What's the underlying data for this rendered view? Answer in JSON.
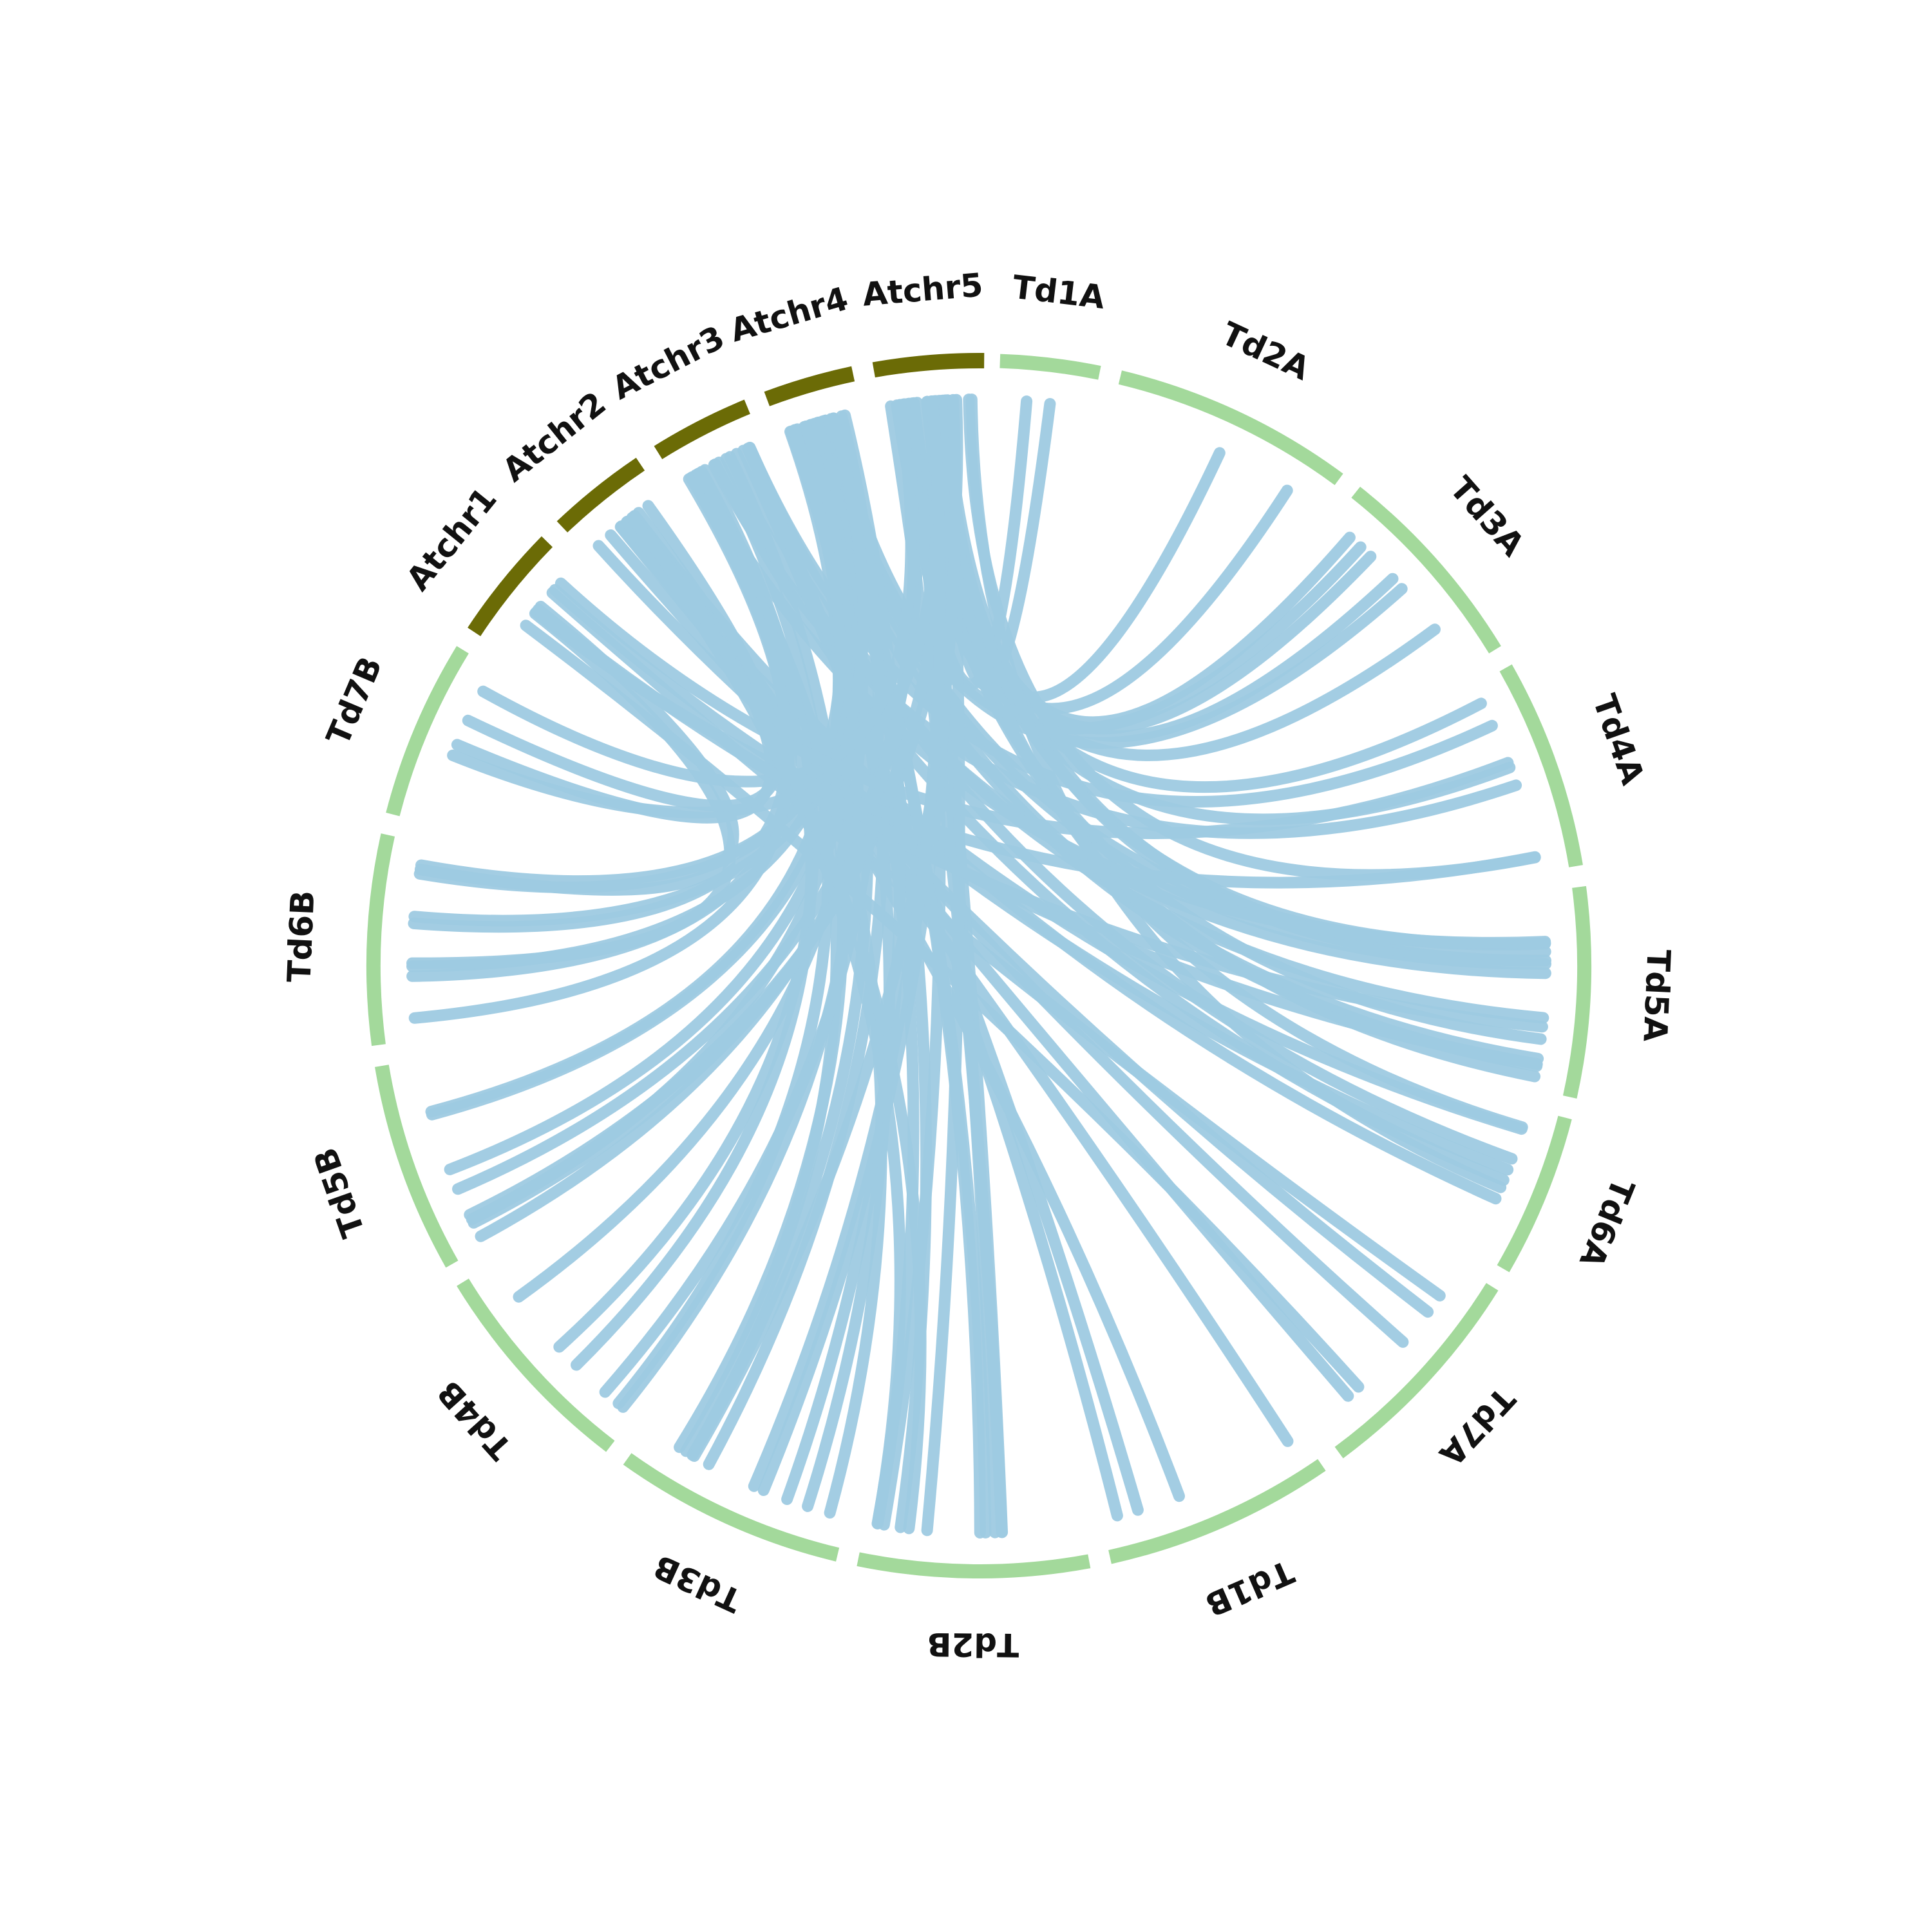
{
  "chart_data": {
    "type": "circos",
    "colors": {
      "arabidopsis": "#6b6b06",
      "durum": "#a3d99b",
      "link": "#9ecae1",
      "label": "#111111"
    },
    "chromosomes": [
      {
        "id": "Atchr1",
        "label": "Atchr1",
        "genome": "arabidopsis"
      },
      {
        "id": "Atchr2",
        "label": "Atchr2",
        "genome": "arabidopsis"
      },
      {
        "id": "Atchr3",
        "label": "Atchr3",
        "genome": "arabidopsis"
      },
      {
        "id": "Atchr4",
        "label": "Atchr4",
        "genome": "arabidopsis"
      },
      {
        "id": "Atchr5",
        "label": "Atchr5",
        "genome": "arabidopsis"
      },
      {
        "id": "Td1A",
        "label": "Td1A",
        "genome": "durum"
      },
      {
        "id": "Td2A",
        "label": "Td2A",
        "genome": "durum"
      },
      {
        "id": "Td3A",
        "label": "Td3A",
        "genome": "durum"
      },
      {
        "id": "Td4A",
        "label": "Td4A",
        "genome": "durum"
      },
      {
        "id": "Td5A",
        "label": "Td5A",
        "genome": "durum"
      },
      {
        "id": "Td6A",
        "label": "Td6A",
        "genome": "durum"
      },
      {
        "id": "Td7A",
        "label": "Td7A",
        "genome": "durum"
      },
      {
        "id": "Td1B",
        "label": "Td1B",
        "genome": "durum"
      },
      {
        "id": "Td2B",
        "label": "Td2B",
        "genome": "durum"
      },
      {
        "id": "Td3B",
        "label": "Td3B",
        "genome": "durum"
      },
      {
        "id": "Td4B",
        "label": "Td4B",
        "genome": "durum"
      },
      {
        "id": "Td5B",
        "label": "Td5B",
        "genome": "durum"
      },
      {
        "id": "Td6B",
        "label": "Td6B",
        "genome": "durum"
      },
      {
        "id": "Td7B",
        "label": "Td7B",
        "genome": "durum"
      }
    ],
    "links": [
      {
        "from": "Atchr5",
        "to": "Td1A",
        "n": 2
      },
      {
        "from": "Atchr5",
        "to": "Td2A",
        "n": 2
      },
      {
        "from": "Atchr5",
        "to": "Td3A",
        "n": 4
      },
      {
        "from": "Atchr4",
        "to": "Td3A",
        "n": 2
      },
      {
        "from": "Atchr5",
        "to": "Td4A",
        "n": 3
      },
      {
        "from": "Atchr3",
        "to": "Td4A",
        "n": 2
      },
      {
        "from": "Atchr5",
        "to": "Td5A",
        "n": 5
      },
      {
        "from": "Atchr4",
        "to": "Td5A",
        "n": 4
      },
      {
        "from": "Atchr3",
        "to": "Td5A",
        "n": 3
      },
      {
        "from": "Atchr2",
        "to": "Td6A",
        "n": 3
      },
      {
        "from": "Atchr3",
        "to": "Td6A",
        "n": 2
      },
      {
        "from": "Atchr2",
        "to": "Td7A",
        "n": 3
      },
      {
        "from": "Atchr1",
        "to": "Td7A",
        "n": 2
      },
      {
        "from": "Atchr3",
        "to": "Td1B",
        "n": 2
      },
      {
        "from": "Atchr2",
        "to": "Td1B",
        "n": 2
      },
      {
        "from": "Atchr5",
        "to": "Td2B",
        "n": 5
      },
      {
        "from": "Atchr4",
        "to": "Td2B",
        "n": 4
      },
      {
        "from": "Atchr4",
        "to": "Td3B",
        "n": 4
      },
      {
        "from": "Atchr3",
        "to": "Td3B",
        "n": 3
      },
      {
        "from": "Atchr4",
        "to": "Td4B",
        "n": 3
      },
      {
        "from": "Atchr3",
        "to": "Td4B",
        "n": 3
      },
      {
        "from": "Atchr5",
        "to": "Td5B",
        "n": 4
      },
      {
        "from": "Atchr4",
        "to": "Td5B",
        "n": 4
      },
      {
        "from": "Atchr4",
        "to": "Td6B",
        "n": 4
      },
      {
        "from": "Atchr3",
        "to": "Td6B",
        "n": 3
      },
      {
        "from": "Atchr1",
        "to": "Td6B",
        "n": 2
      },
      {
        "from": "Atchr5",
        "to": "Td7B",
        "n": 2
      },
      {
        "from": "Atchr2",
        "to": "Td7B",
        "n": 2
      },
      {
        "from": "Atchr1",
        "to": "Td4A",
        "n": 2
      },
      {
        "from": "Atchr1",
        "to": "Td5A",
        "n": 2
      },
      {
        "from": "Atchr2",
        "to": "Td2B",
        "n": 2
      },
      {
        "from": "Atchr5",
        "to": "Td6A",
        "n": 2
      },
      {
        "from": "Atchr5",
        "to": "Td3B",
        "n": 3
      }
    ]
  }
}
